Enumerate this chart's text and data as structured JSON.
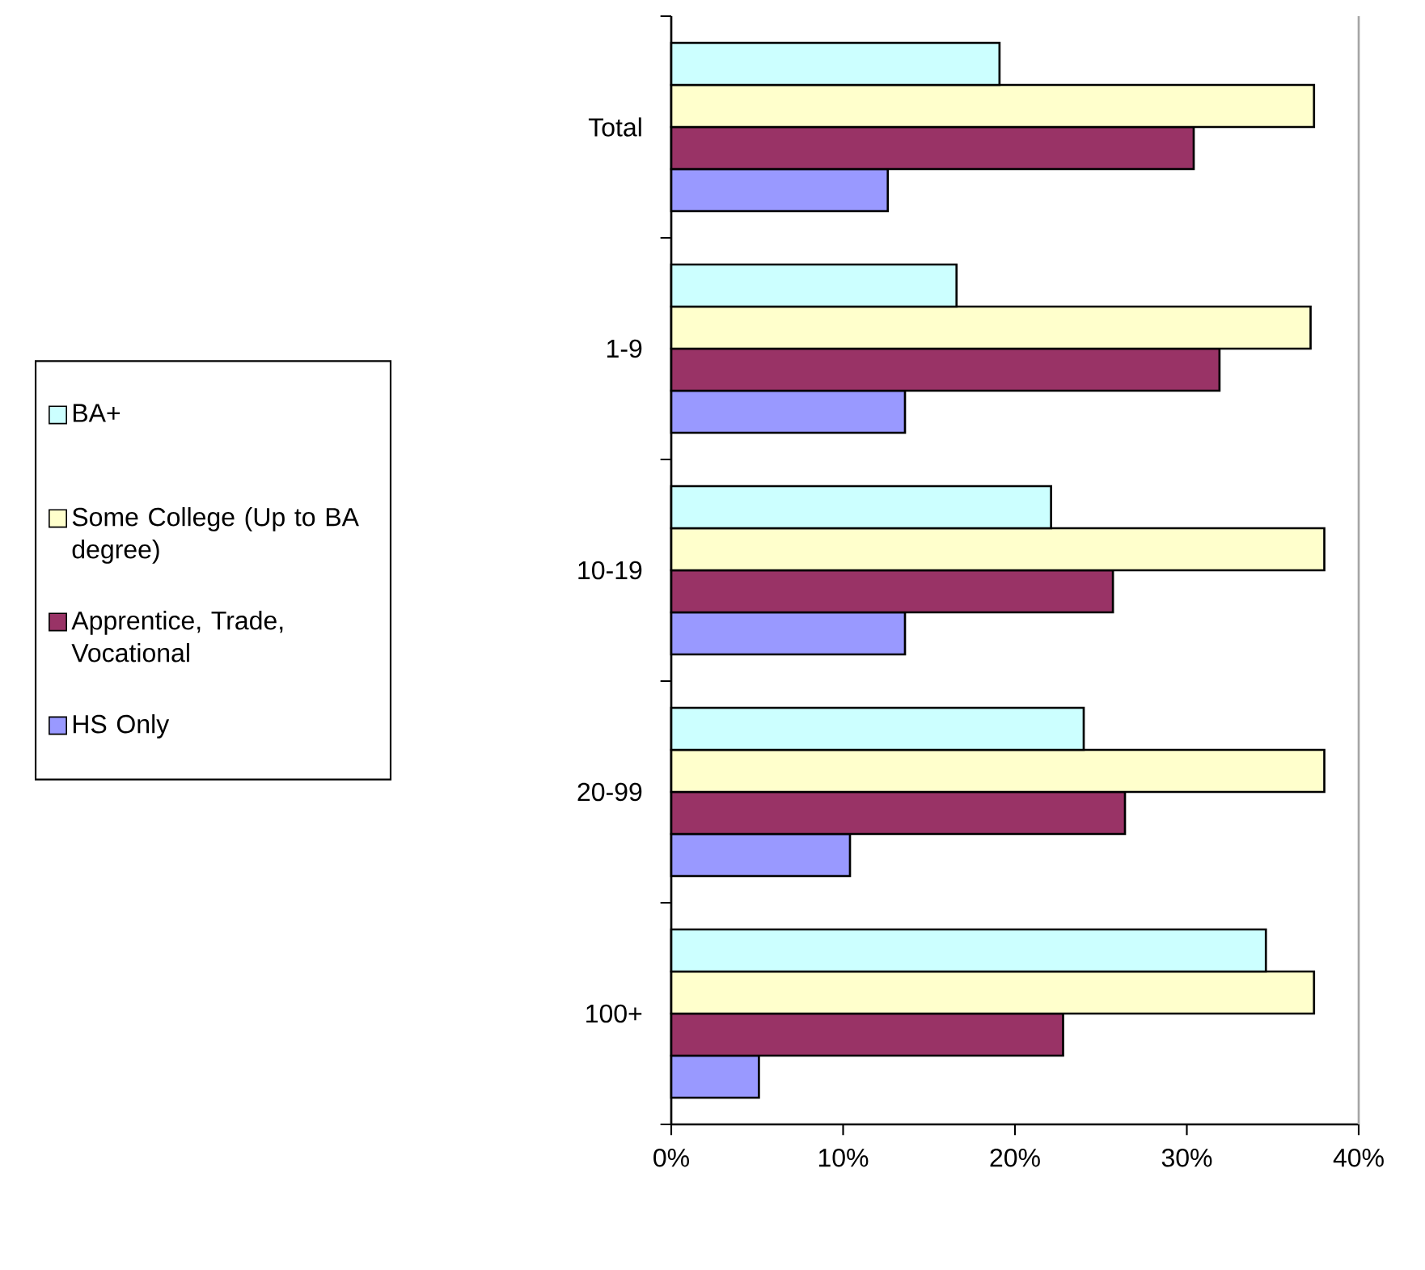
{
  "chart_data": {
    "type": "bar",
    "orientation": "horizontal",
    "categories": [
      "Total",
      "1-9",
      "10-19",
      "20-99",
      "100+"
    ],
    "series": [
      {
        "name": "BA+",
        "color": "#ccffff",
        "values": [
          19.1,
          16.6,
          22.1,
          24.0,
          34.6
        ]
      },
      {
        "name": "Some College (Up to BA degree)",
        "color": "#ffffcc",
        "values": [
          37.4,
          37.2,
          38.0,
          38.0,
          37.4
        ]
      },
      {
        "name": "Apprentice, Trade, Vocational",
        "color": "#993366",
        "values": [
          30.4,
          31.9,
          25.7,
          26.4,
          22.8
        ]
      },
      {
        "name": "HS Only",
        "color": "#9999ff",
        "values": [
          12.6,
          13.6,
          13.6,
          10.4,
          5.1
        ]
      }
    ],
    "xlim": [
      0,
      40
    ],
    "xticks": [
      {
        "value": 0,
        "label": "0%"
      },
      {
        "value": 10,
        "label": "10%"
      },
      {
        "value": 20,
        "label": "20%"
      },
      {
        "value": 30,
        "label": "30%"
      },
      {
        "value": 40,
        "label": "40%"
      }
    ],
    "legend": "left"
  }
}
